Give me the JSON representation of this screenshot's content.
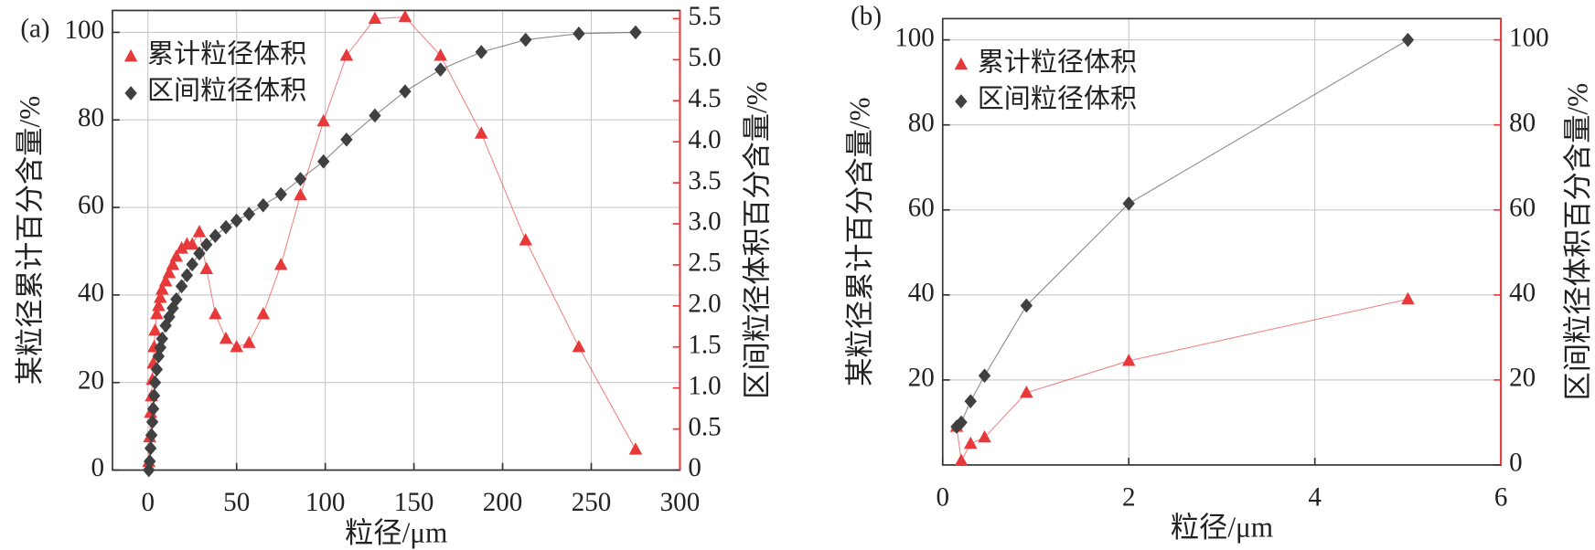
{
  "chart_data": [
    {
      "type": "line",
      "title": "(a)",
      "x_label": "粒径/μm",
      "y_label": "某粒径累计百分含量/%",
      "y2_label": "区间粒径体积百分含量/%",
      "x": [
        0.5,
        1,
        1.5,
        2,
        2.5,
        3,
        3.5,
        4,
        5,
        6,
        7,
        8,
        10,
        12,
        14,
        16,
        19,
        22,
        25,
        29,
        33,
        38,
        44,
        50,
        57,
        65,
        75,
        86,
        99,
        112,
        128,
        145,
        165,
        188,
        213,
        243,
        275
      ],
      "series": [
        {
          "name": "累计粒径体积",
          "color": "#e8393a",
          "marker": "triangle",
          "axis": "y2",
          "values": [
            0.1,
            0.4,
            0.7,
            0.9,
            1.1,
            1.3,
            1.5,
            1.7,
            1.9,
            2.0,
            2.1,
            2.2,
            2.3,
            2.4,
            2.5,
            2.6,
            2.7,
            2.75,
            2.75,
            2.9,
            2.45,
            1.9,
            1.6,
            1.5,
            1.55,
            1.9,
            2.5,
            3.35,
            4.25,
            5.05,
            5.5,
            5.52,
            5.05,
            4.1,
            2.8,
            1.5,
            0.25
          ]
        },
        {
          "name": "区间粒径体积",
          "color": "#404040",
          "marker": "diamond",
          "values": [
            0,
            2,
            5,
            8,
            11,
            14,
            17,
            20,
            23,
            26,
            28,
            30,
            33,
            35,
            37,
            39,
            42,
            44.5,
            47,
            49.5,
            51.5,
            53.5,
            55.5,
            57,
            58.5,
            60.5,
            63,
            66.5,
            70.5,
            75.5,
            81,
            86.5,
            91.5,
            95.5,
            98.3,
            99.7,
            100
          ]
        }
      ],
      "xlim": [
        -20,
        300
      ],
      "xticks": [
        0,
        50,
        100,
        150,
        200,
        250,
        300
      ],
      "ylim": [
        0,
        105
      ],
      "yticks": [
        0,
        20,
        40,
        60,
        80,
        100
      ],
      "y2lim": [
        0,
        5.6
      ],
      "y2ticks": [
        0,
        0.5,
        {
          "value": 1,
          "label": "1.0"
        },
        1.5,
        {
          "value": 2,
          "label": "2.0"
        },
        2.5,
        {
          "value": 3,
          "label": "3.0"
        },
        3.5,
        {
          "value": 4,
          "label": "4.0"
        },
        4.5,
        {
          "value": 5,
          "label": "5.0"
        },
        5.5
      ],
      "y2_color": "#e8393a",
      "grid": true,
      "legend": "upper left"
    },
    {
      "type": "line",
      "title": "(b)",
      "x_label": "粒径/μm",
      "y_label": "某粒径累计百分含量/%",
      "y2_label": "区间粒径体积百分含量/%",
      "x": [
        0.15,
        0.2,
        0.3,
        0.45,
        0.9,
        2,
        5
      ],
      "series": [
        {
          "name": "累计粒径体积",
          "color": "#e8393a",
          "marker": "triangle",
          "axis": "y2",
          "values": [
            9,
            1,
            5,
            6.5,
            17,
            24.5,
            39
          ]
        },
        {
          "name": "区间粒径体积",
          "color": "#404040",
          "marker": "diamond",
          "values": [
            9,
            10,
            15,
            21,
            37.5,
            61.5,
            100
          ]
        }
      ],
      "xlim": [
        0,
        6
      ],
      "xticks": [
        0,
        2,
        4,
        6
      ],
      "ylim": [
        0,
        105
      ],
      "yticks": [
        20,
        40,
        60,
        80,
        100
      ],
      "y2lim": [
        0,
        105
      ],
      "y2ticks": [
        0,
        20,
        40,
        60,
        80,
        100
      ],
      "y2_color": "#e8393a",
      "grid": true,
      "legend": "upper left"
    }
  ]
}
